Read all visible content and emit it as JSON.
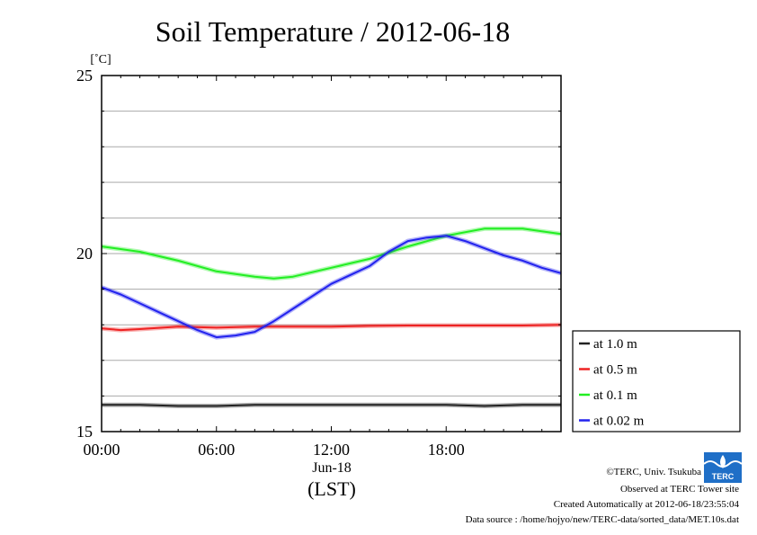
{
  "chart_data": {
    "type": "line",
    "title": "Soil Temperature / 2012-06-18",
    "ylabel": "[˚C]",
    "xlabel": "(LST)",
    "date_label": "Jun-18",
    "ylim": [
      15,
      25
    ],
    "xlim": [
      0,
      24
    ],
    "yticks": [
      15,
      20,
      25
    ],
    "xticks": [
      0,
      6,
      12,
      18
    ],
    "xtick_labels": [
      "00:00",
      "06:00",
      "12:00",
      "18:00"
    ],
    "grid": true,
    "legend_position": "right",
    "series": [
      {
        "name": "at 1.0 m",
        "color": "#222222",
        "x": [
          0,
          2,
          4,
          6,
          8,
          10,
          12,
          14,
          16,
          18,
          20,
          22,
          24
        ],
        "y": [
          15.75,
          15.75,
          15.72,
          15.72,
          15.75,
          15.75,
          15.75,
          15.75,
          15.75,
          15.75,
          15.72,
          15.75,
          15.75
        ]
      },
      {
        "name": "at 0.5 m",
        "color": "#ee2222",
        "x": [
          0,
          1,
          2,
          4,
          6,
          8,
          10,
          12,
          14,
          16,
          18,
          20,
          22,
          24
        ],
        "y": [
          17.9,
          17.85,
          17.88,
          17.95,
          17.92,
          17.95,
          17.95,
          17.95,
          17.97,
          17.98,
          17.98,
          17.98,
          17.98,
          18.0
        ]
      },
      {
        "name": "at 0.1 m",
        "color": "#22ee22",
        "x": [
          0,
          2,
          4,
          6,
          8,
          9,
          10,
          12,
          14,
          16,
          18,
          20,
          22,
          24
        ],
        "y": [
          20.2,
          20.05,
          19.8,
          19.5,
          19.35,
          19.3,
          19.35,
          19.6,
          19.85,
          20.2,
          20.5,
          20.7,
          20.7,
          20.55
        ]
      },
      {
        "name": "at 0.02 m",
        "color": "#2222ee",
        "x": [
          0,
          1,
          2,
          3,
          4,
          5,
          6,
          7,
          8,
          9,
          10,
          11,
          12,
          13,
          14,
          15,
          16,
          17,
          18,
          19,
          20,
          21,
          22,
          23,
          24
        ],
        "y": [
          19.05,
          18.85,
          18.6,
          18.35,
          18.1,
          17.85,
          17.65,
          17.7,
          17.8,
          18.1,
          18.45,
          18.8,
          19.15,
          19.4,
          19.65,
          20.05,
          20.35,
          20.45,
          20.5,
          20.35,
          20.15,
          19.95,
          19.8,
          19.6,
          19.45
        ]
      }
    ]
  },
  "footer": {
    "copyright": "©TERC, Univ. Tsukuba",
    "observed": "Observed at TERC Tower site",
    "created": "Created Automatically at 2012-06-18/23:55:04",
    "source": "Data source : /home/hojyo/new/TERC-data/sorted_data/MET.10s.dat",
    "logo_text": "TERC"
  },
  "colors": {
    "grid": "#aaaaaa",
    "logo_blue": "#1f6fc7"
  }
}
